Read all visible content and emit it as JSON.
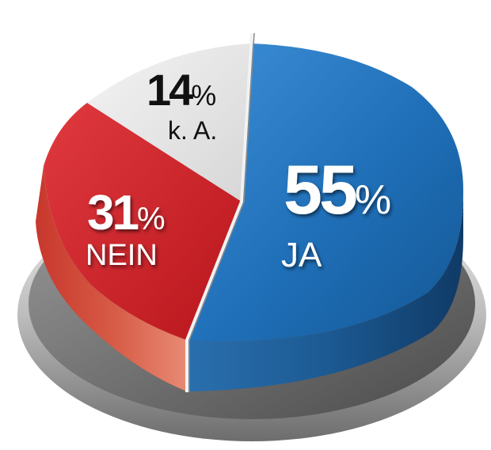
{
  "chart_data": {
    "type": "pie",
    "slices": [
      {
        "label": "JA",
        "value": 55,
        "value_text": "55",
        "unit": "%",
        "color": "#1f6fb8"
      },
      {
        "label": "NEIN",
        "value": 31,
        "value_text": "31",
        "unit": "%",
        "color": "#d2232a"
      },
      {
        "label": "k. A.",
        "value": 14,
        "value_text": "14",
        "unit": "%",
        "color": "#e6e6e6"
      }
    ]
  }
}
